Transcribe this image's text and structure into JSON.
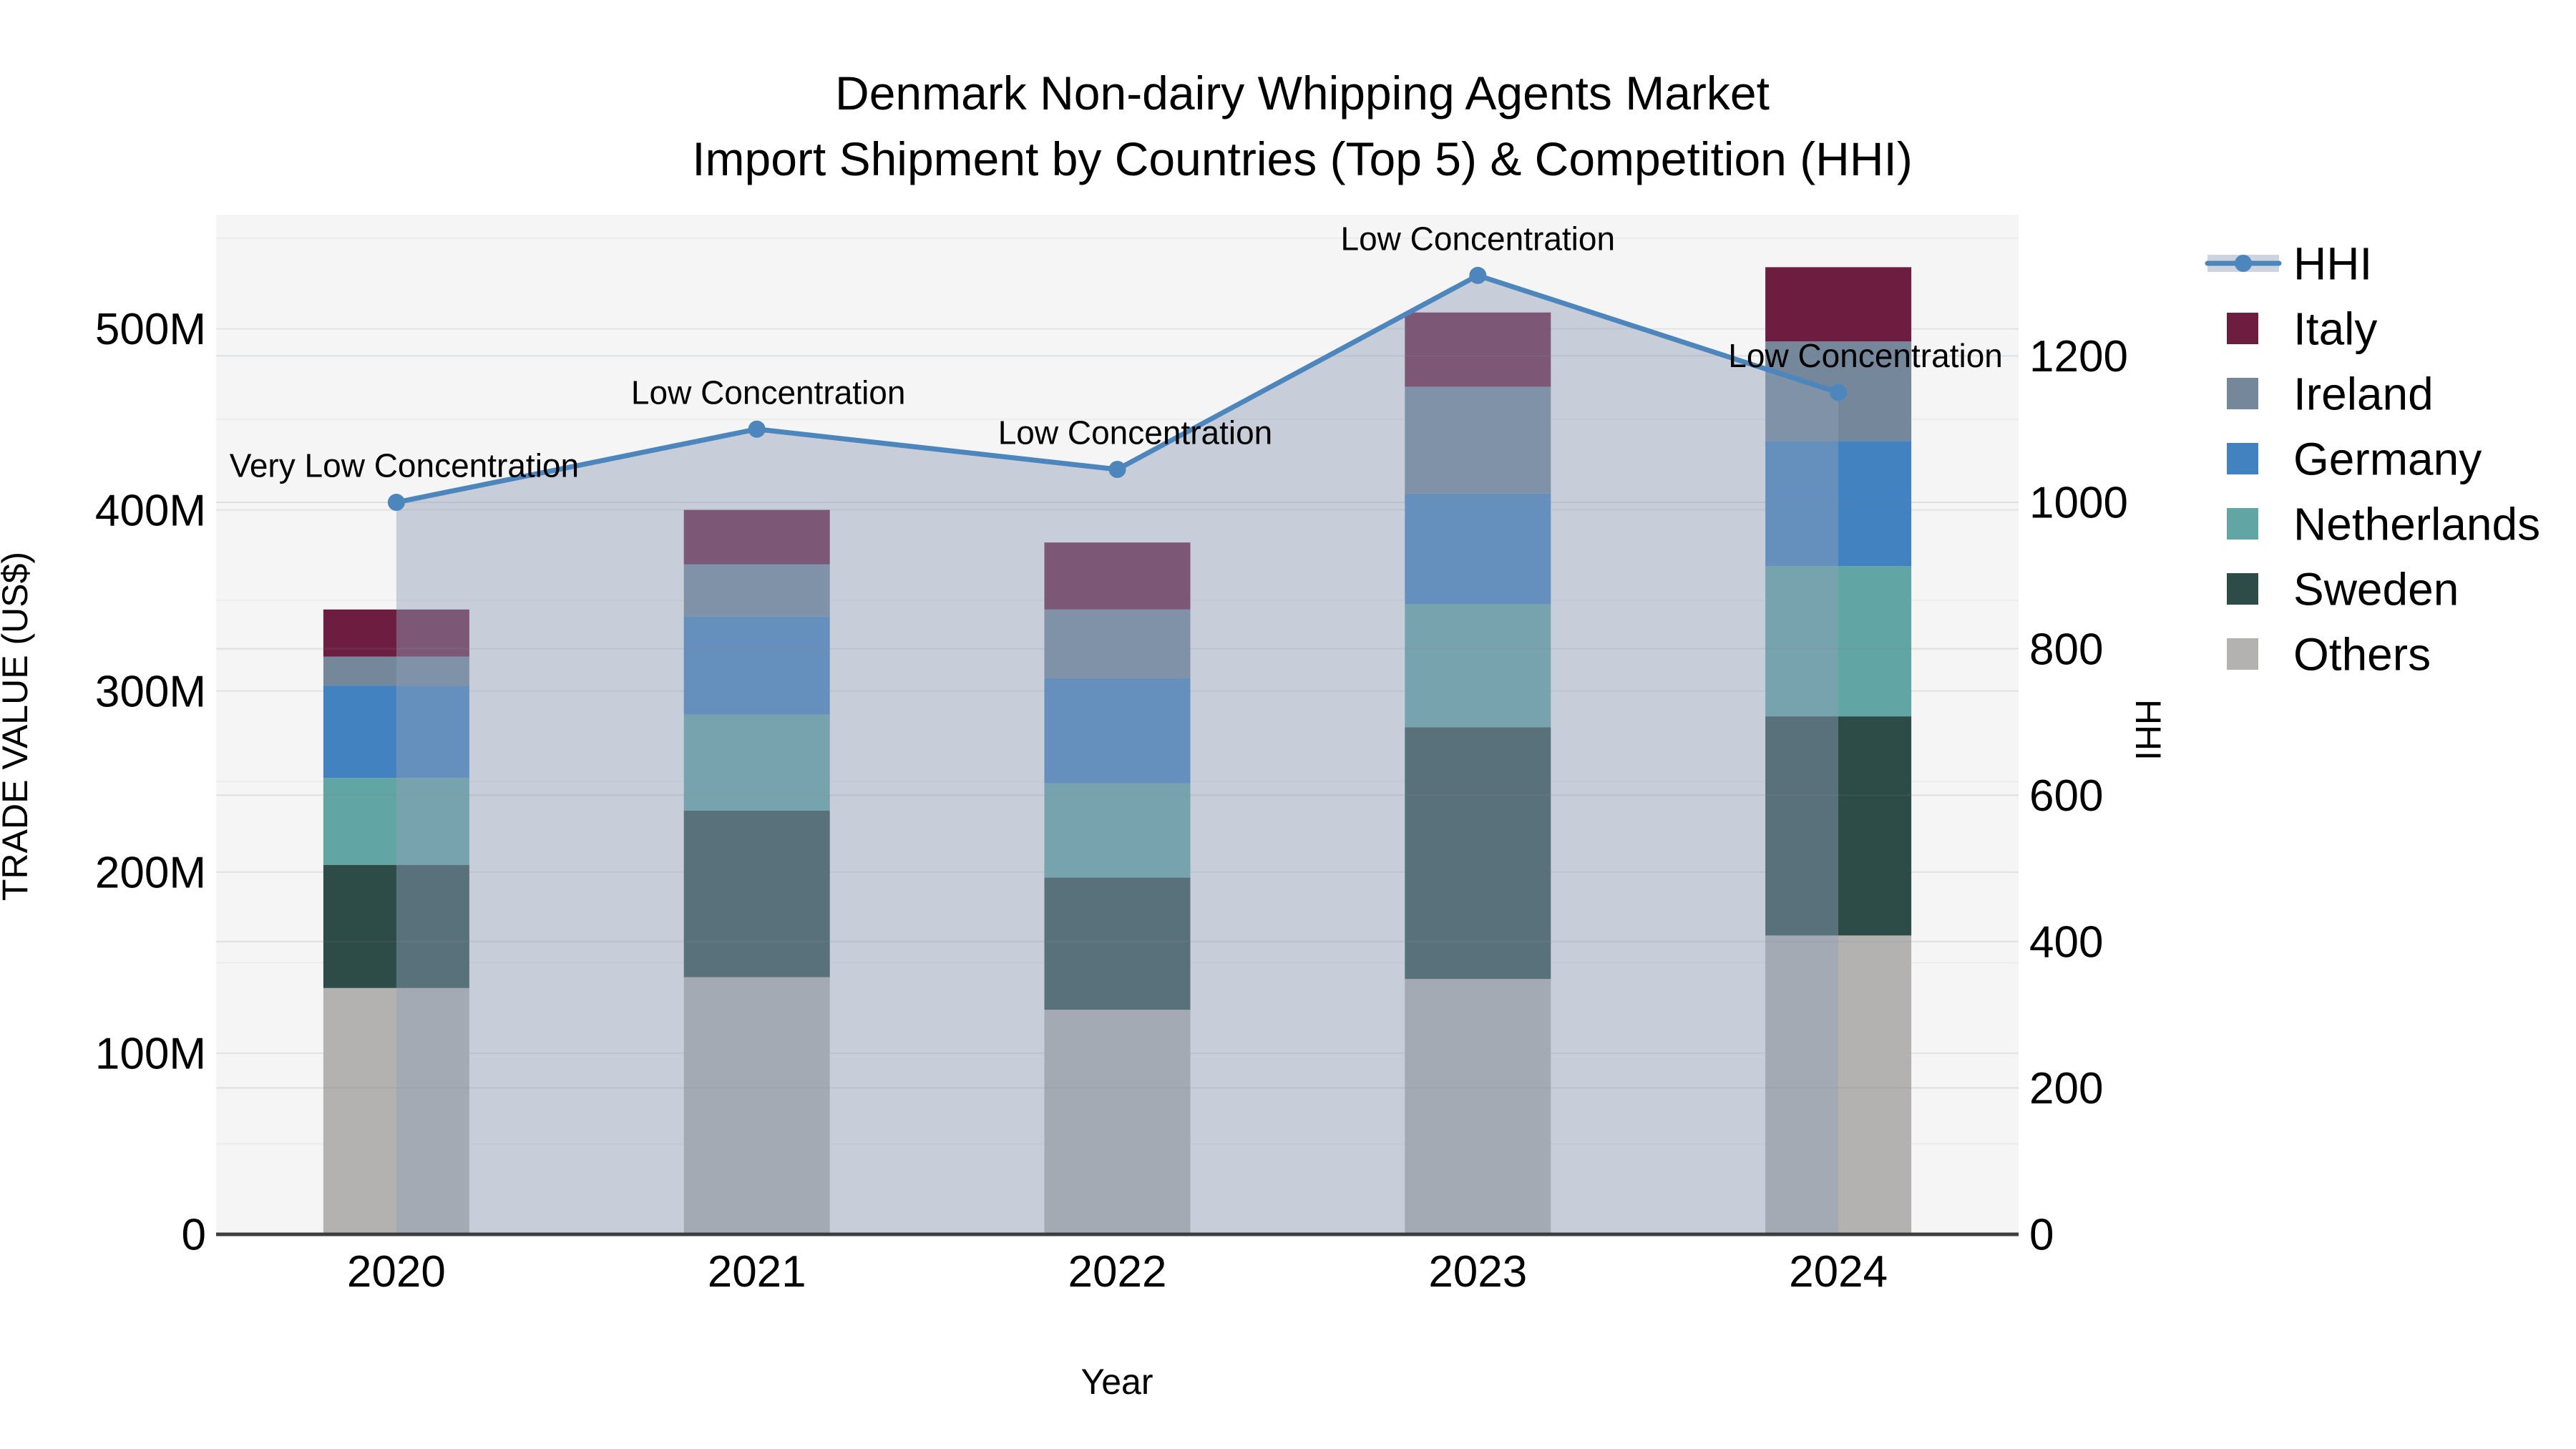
{
  "chart_data": {
    "type": "bar",
    "title_line1": "Denmark Non-dairy Whipping Agents Market",
    "title_line2": "Import Shipment by Countries (Top 5) & Competition (HHI)",
    "xlabel": "Year",
    "ylabel_left": "TRADE VALUE (US$)",
    "ylabel_right": "HHI",
    "categories": [
      "2020",
      "2021",
      "2022",
      "2023",
      "2024"
    ],
    "value_unit": "Million US$",
    "series": [
      {
        "name": "Italy",
        "color": "#6d1d40",
        "values": [
          26,
          30,
          37,
          41,
          41
        ]
      },
      {
        "name": "Ireland",
        "color": "#74879b",
        "values": [
          16,
          29,
          38,
          59,
          55
        ]
      },
      {
        "name": "Germany",
        "color": "#4382c0",
        "values": [
          51,
          54,
          58,
          61,
          69
        ]
      },
      {
        "name": "Netherlands",
        "color": "#61a6a4",
        "values": [
          48,
          53,
          52,
          68,
          83
        ]
      },
      {
        "name": "Sweden",
        "color": "#2d4b47",
        "values": [
          68,
          92,
          73,
          139,
          121
        ]
      },
      {
        "name": "Others",
        "color": "#b3b2b1",
        "values": [
          136,
          142,
          124,
          141,
          165
        ]
      }
    ],
    "stack_bottom_to_top": [
      "Others",
      "Sweden",
      "Netherlands",
      "Germany",
      "Ireland",
      "Italy"
    ],
    "totals_m": [
      345,
      400,
      382,
      509,
      534
    ],
    "hhi_line": {
      "name": "HHI",
      "color": "#4d86bc",
      "area_fill": "rgba(145,160,183,0.45)",
      "legend_band_color": "#cdd4de",
      "values": [
        1000,
        1100,
        1045,
        1310,
        1150
      ]
    },
    "annotations": [
      "Very Low Concentration",
      "Low Concentration",
      "Low Concentration",
      "Low Concentration",
      "Low Concentration"
    ],
    "y_axis_left": {
      "tick_labels": [
        "0",
        "100M",
        "200M",
        "300M",
        "400M",
        "500M"
      ],
      "tick_values_m": [
        0,
        100,
        200,
        300,
        400,
        500
      ],
      "max_m": 563
    },
    "y_axis_right": {
      "tick_labels": [
        "0",
        "200",
        "400",
        "600",
        "800",
        "1000",
        "1200"
      ],
      "tick_values": [
        0,
        200,
        400,
        600,
        800,
        1000,
        1200
      ],
      "max": 1393
    },
    "legend_items": [
      "HHI",
      "Italy",
      "Ireland",
      "Germany",
      "Netherlands",
      "Sweden",
      "Others"
    ],
    "plot_bg": "#f5f5f5",
    "grid_color_minor": "#ececec",
    "grid_color_major": "#e2e2e2",
    "grid_color_hhi": "rgba(120,130,140,0.18)",
    "axis_line_color": "#3d3d3d",
    "grid": true,
    "legend_position": "right"
  }
}
